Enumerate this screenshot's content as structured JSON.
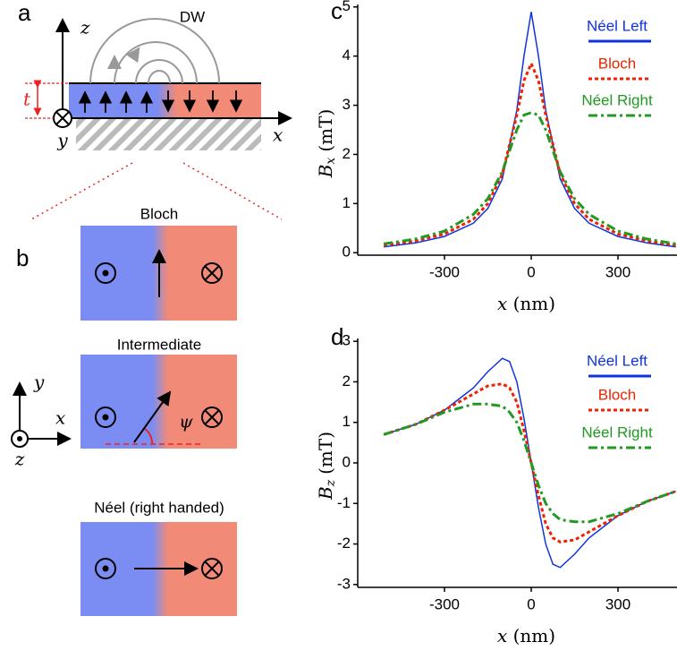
{
  "diagram": {
    "panel_a": {
      "label": "a",
      "title": "DW",
      "axis_z": "z",
      "thickness": "t",
      "axis_y": "y",
      "axis_x": "x"
    },
    "panel_b": {
      "label": "b",
      "states": [
        {
          "title": "Bloch"
        },
        {
          "title": "Intermediate"
        },
        {
          "title": "Néel (right handed)"
        }
      ],
      "axis_y": "y",
      "axis_x": "x",
      "axis_z": "z",
      "angle": "ψ"
    }
  },
  "chart_data": [
    {
      "type": "line",
      "panel_label": "c",
      "xlabel": {
        "symbol": "x",
        "unit": "(nm)"
      },
      "ylabel": {
        "symbol": "B",
        "subscript": "x",
        "unit": "(mT)"
      },
      "x": [
        -510,
        -400,
        -300,
        -200,
        -150,
        -100,
        -50,
        -25,
        0,
        25,
        50,
        100,
        150,
        200,
        300,
        400,
        500
      ],
      "series": [
        {
          "name": "Néel Left",
          "color": "#1133dd",
          "dash": "none",
          "values": [
            0.12,
            0.2,
            0.33,
            0.6,
            0.9,
            1.5,
            2.9,
            4.0,
            4.9,
            4.0,
            2.9,
            1.5,
            0.9,
            0.6,
            0.33,
            0.2,
            0.12
          ]
        },
        {
          "name": "Bloch",
          "color": "#ee2200",
          "dash": "4,3",
          "values": [
            0.15,
            0.24,
            0.38,
            0.68,
            1.0,
            1.6,
            2.8,
            3.5,
            3.85,
            3.5,
            2.8,
            1.6,
            1.0,
            0.68,
            0.38,
            0.24,
            0.15
          ]
        },
        {
          "name": "Néel Right",
          "color": "#229922",
          "dash": "10,4,3,4",
          "values": [
            0.18,
            0.28,
            0.44,
            0.78,
            1.1,
            1.65,
            2.5,
            2.8,
            2.85,
            2.8,
            2.5,
            1.65,
            1.1,
            0.78,
            0.44,
            0.28,
            0.18
          ]
        }
      ],
      "xlim": [
        -600,
        504
      ],
      "xticks": [
        -300,
        0,
        300
      ],
      "ylim": [
        -0.05,
        5.05
      ],
      "yticks": [
        0,
        1,
        2,
        3,
        4,
        5
      ],
      "legend": "upper right"
    },
    {
      "type": "line",
      "panel_label": "d",
      "xlabel": {
        "symbol": "x",
        "unit": "(nm)"
      },
      "ylabel": {
        "symbol": "B",
        "subscript": "z",
        "unit": "(mT)"
      },
      "x": [
        -510,
        -400,
        -300,
        -200,
        -150,
        -100,
        -75,
        -50,
        -25,
        0,
        25,
        50,
        75,
        100,
        150,
        200,
        300,
        400,
        500
      ],
      "series": [
        {
          "name": "Néel Left",
          "color": "#1133dd",
          "dash": "none",
          "values": [
            0.7,
            0.95,
            1.3,
            1.85,
            2.25,
            2.58,
            2.5,
            2.0,
            1.1,
            0,
            -1.1,
            -2.0,
            -2.5,
            -2.58,
            -2.25,
            -1.85,
            -1.3,
            -0.95,
            -0.7
          ]
        },
        {
          "name": "Bloch",
          "color": "#ee2200",
          "dash": "4,3",
          "values": [
            0.7,
            0.95,
            1.3,
            1.7,
            1.9,
            1.95,
            1.85,
            1.5,
            0.8,
            0,
            -0.8,
            -1.5,
            -1.85,
            -1.95,
            -1.9,
            -1.7,
            -1.3,
            -0.95,
            -0.7
          ]
        },
        {
          "name": "Néel Right",
          "color": "#229922",
          "dash": "10,4,3,4",
          "values": [
            0.7,
            0.95,
            1.25,
            1.45,
            1.45,
            1.4,
            1.25,
            1.0,
            0.55,
            0,
            -0.55,
            -1.0,
            -1.25,
            -1.4,
            -1.45,
            -1.45,
            -1.25,
            -0.95,
            -0.7
          ]
        }
      ],
      "xlim": [
        -600,
        504
      ],
      "xticks": [
        -300,
        0,
        300
      ],
      "ylim": [
        -3.07,
        3.07
      ],
      "yticks": [
        -3,
        -2,
        -1,
        0,
        1,
        2,
        3
      ],
      "legend": "upper right"
    }
  ]
}
